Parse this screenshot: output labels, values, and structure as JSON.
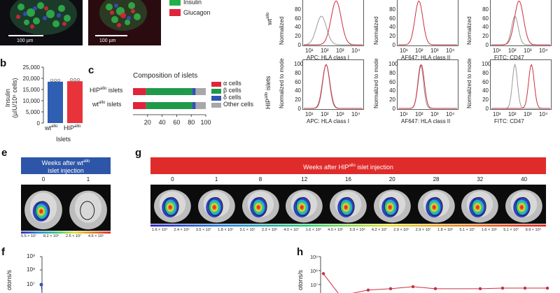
{
  "panels": {
    "a_legend": [
      "Insulin",
      "Glucagon"
    ],
    "a_scale": [
      "100 µm",
      "100 µm"
    ],
    "b": {
      "letter": "b",
      "ylabel": "Insulin\n(µIU/10⁶ cells)",
      "xlabel": "Islets",
      "yticks": [
        "0",
        "5,000",
        "10,000",
        "15,000",
        "20,000",
        "25,000"
      ],
      "categories": [
        "wt",
        "HIP"
      ],
      "category_sup": [
        "allo",
        "allo"
      ]
    },
    "c": {
      "letter": "c",
      "title": "Composition of islets",
      "rows": [
        "HIP",
        "wt"
      ],
      "row_sup": [
        "allo",
        "allo"
      ],
      "row_suffix": " islets",
      "xticks": [
        "20",
        "40",
        "60",
        "80",
        "100"
      ],
      "legend": [
        "α cells",
        "β cells",
        "δ cells",
        "Other cells"
      ]
    },
    "flow": {
      "row1_labels": [
        "APC: HLA class I",
        "AF647: HLA class II",
        "FITC: CD47"
      ],
      "row2_labels": [
        "APC: HLA class I",
        "AF647: HLA class II",
        "FITC: CD47"
      ],
      "ylabel": "Normalized to mode",
      "ylabel_short": "Normalized",
      "yticks": [
        "0",
        "20",
        "40",
        "60",
        "80",
        "100"
      ],
      "row1_side": "wt",
      "row1_side_sup": "allo",
      "row2_side": "HIP",
      "row2_side_sup": "allo",
      "row2_side_suffix": " islets",
      "xticks": [
        "10¹",
        "10²",
        "10³",
        "10⁴"
      ]
    },
    "e": {
      "letter": "e",
      "banner_line1": "Weeks after wt",
      "banner_sup": "allo",
      "banner_line2": "islet injection",
      "weeks": [
        "0",
        "1"
      ],
      "values": [
        "5.5 × 10⁷",
        "8.2 × 10⁵",
        "2.5 × 10⁷",
        "4.6 × 10⁵"
      ]
    },
    "g": {
      "letter": "g",
      "banner": "Weeks after HIP",
      "banner_sup": "allo",
      "banner_suffix": " islet injection",
      "weeks": [
        "0",
        "1",
        "8",
        "12",
        "16",
        "20",
        "28",
        "32",
        "40"
      ],
      "values": [
        "1.6 × 10⁴",
        "2.4 × 10⁶",
        "3.5 × 10⁷",
        "1.8 × 10⁵",
        "3.1 × 10⁷",
        "2.3 × 10⁵",
        "4.0 × 10⁷",
        "1.6 × 10⁵",
        "4.0 × 10⁵",
        "5.9 × 10⁵",
        "4.2 × 10⁷",
        "2.9 × 10⁵",
        "2.9 × 10⁷",
        "1.8 × 10⁵",
        "5.1 × 10⁷",
        "1.6 × 10⁵",
        "5.1 × 10⁷",
        "9.9 × 10⁴"
      ]
    },
    "f": {
      "letter": "f",
      "ylabel": "otons/s",
      "yticks": [
        "10⁹",
        "10⁸",
        "10⁷"
      ]
    },
    "h": {
      "letter": "h",
      "ylabel": "otons/s",
      "yticks": [
        "10⁹",
        "10⁸",
        "10⁷"
      ]
    }
  },
  "colors": {
    "insulin": "#22b04b",
    "glucagon": "#e0243a",
    "wt_bar": "#2f5fb3",
    "hip_bar": "#e8333a",
    "alpha": "#e0243a",
    "beta": "#1f9a4a",
    "delta": "#2f55b0",
    "other": "#a8a8a8",
    "banner_blue": "#2e56a8",
    "banner_red": "#e02b2b",
    "trace_red": "#c9303e",
    "trace_grey": "#9a9a9a"
  },
  "chart_data": [
    {
      "type": "bar",
      "panel": "b",
      "categories": [
        "wt",
        "HIP"
      ],
      "values": [
        18500,
        18700
      ],
      "ylim": [
        0,
        25000
      ]
    },
    {
      "type": "bar",
      "panel": "c",
      "orientation": "horizontal-stacked",
      "categories": [
        "HIP",
        "wt"
      ],
      "series": [
        {
          "name": "α cells",
          "values": [
            18,
            18
          ]
        },
        {
          "name": "β cells",
          "values": [
            63,
            63
          ]
        },
        {
          "name": "δ cells",
          "values": [
            5,
            5
          ]
        },
        {
          "name": "Other cells",
          "values": [
            14,
            14
          ]
        }
      ],
      "xlim": [
        0,
        100
      ]
    },
    {
      "type": "line",
      "panel": "h",
      "yscale": "log",
      "ylim": [
        1000000.0,
        1000000000.0
      ],
      "x": [
        0,
        1,
        8,
        12,
        16,
        20,
        28,
        32,
        36,
        40
      ],
      "values": [
        60000000.0,
        600000.0,
        4000000.0,
        5000000.0,
        7000000.0,
        5000000.0,
        5000000.0,
        5500000.0,
        5500000.0,
        5500000.0
      ]
    }
  ]
}
